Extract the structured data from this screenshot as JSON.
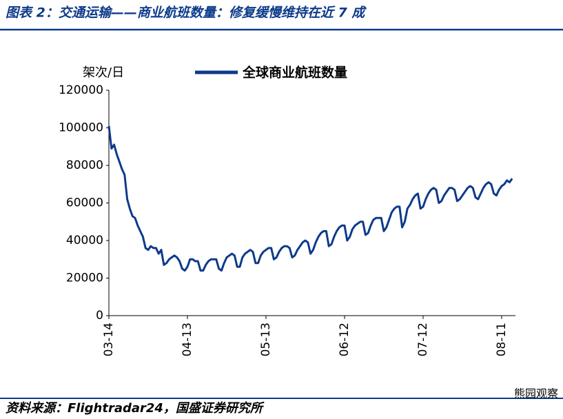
{
  "chart_data": {
    "type": "line",
    "title": "图表 2：交通运输——商业航班数量：修复缓慢维持在近 7 成",
    "y_label": "架次/日",
    "source": "资料来源：Flightradar24，国盛证券研究所",
    "watermark": "熊园观察",
    "categories": [
      "03-14",
      null,
      null,
      null,
      null,
      null,
      null,
      null,
      null,
      null,
      null,
      null,
      null,
      null,
      null,
      null,
      null,
      null,
      null,
      null,
      null,
      null,
      null,
      null,
      null,
      null,
      null,
      null,
      null,
      null,
      "04-13",
      null,
      null,
      null,
      null,
      null,
      null,
      null,
      null,
      null,
      null,
      null,
      null,
      null,
      null,
      null,
      null,
      null,
      null,
      null,
      null,
      null,
      null,
      null,
      null,
      null,
      null,
      null,
      null,
      null,
      "05-13",
      null,
      null,
      null,
      null,
      null,
      null,
      null,
      null,
      null,
      null,
      null,
      null,
      null,
      null,
      null,
      null,
      null,
      null,
      null,
      null,
      null,
      null,
      null,
      null,
      null,
      null,
      null,
      null,
      null,
      "06-12",
      null,
      null,
      null,
      null,
      null,
      null,
      null,
      null,
      null,
      null,
      null,
      null,
      null,
      null,
      null,
      null,
      null,
      null,
      null,
      null,
      null,
      null,
      null,
      null,
      null,
      null,
      null,
      null,
      null,
      "07-12",
      null,
      null,
      null,
      null,
      null,
      null,
      null,
      null,
      null,
      null,
      null,
      null,
      null,
      null,
      null,
      null,
      null,
      null,
      null,
      null,
      null,
      null,
      null,
      null,
      null,
      null,
      null,
      null,
      null,
      "08-11",
      null,
      null,
      null,
      null
    ],
    "series": [
      {
        "name": "全球商业航班数量",
        "color": "#0d3a8a",
        "values": [
          101000,
          89000,
          91000,
          86000,
          82000,
          78000,
          75000,
          62000,
          57000,
          53000,
          52000,
          48000,
          45000,
          42000,
          36000,
          35000,
          37000,
          36000,
          36000,
          33000,
          35000,
          27000,
          28000,
          30000,
          31000,
          32000,
          31000,
          29000,
          25000,
          24000,
          26000,
          30000,
          30000,
          29000,
          29000,
          24000,
          24000,
          27000,
          29000,
          30000,
          30000,
          30000,
          25000,
          24000,
          28000,
          31000,
          32000,
          33000,
          32000,
          26000,
          26000,
          31000,
          33000,
          34000,
          35000,
          34000,
          28000,
          28000,
          32000,
          34000,
          35000,
          36000,
          36000,
          30000,
          31000,
          34000,
          36000,
          37000,
          37000,
          36000,
          31000,
          32000,
          35000,
          37000,
          39000,
          40000,
          39000,
          33000,
          35000,
          39000,
          42000,
          44000,
          45000,
          45000,
          37000,
          38000,
          42000,
          45000,
          47000,
          48000,
          48000,
          40000,
          42000,
          46000,
          48000,
          49000,
          50000,
          50000,
          43000,
          44000,
          48000,
          51000,
          52000,
          52000,
          52000,
          45000,
          47000,
          51000,
          55000,
          57000,
          58000,
          58000,
          47000,
          50000,
          57000,
          59000,
          62000,
          64000,
          65000,
          57000,
          58000,
          62000,
          65000,
          67000,
          68000,
          67000,
          60000,
          61000,
          64000,
          66000,
          68000,
          68000,
          67000,
          61000,
          62000,
          64000,
          66000,
          68000,
          69000,
          68000,
          63000,
          62000,
          65000,
          68000,
          70000,
          71000,
          70000,
          65000,
          64000,
          67000,
          69000,
          70000,
          72000,
          71000,
          73000
        ]
      }
    ],
    "ylim": [
      0,
      120000
    ],
    "yticks": [
      0,
      20000,
      40000,
      60000,
      80000,
      100000,
      120000
    ],
    "grid": false
  }
}
